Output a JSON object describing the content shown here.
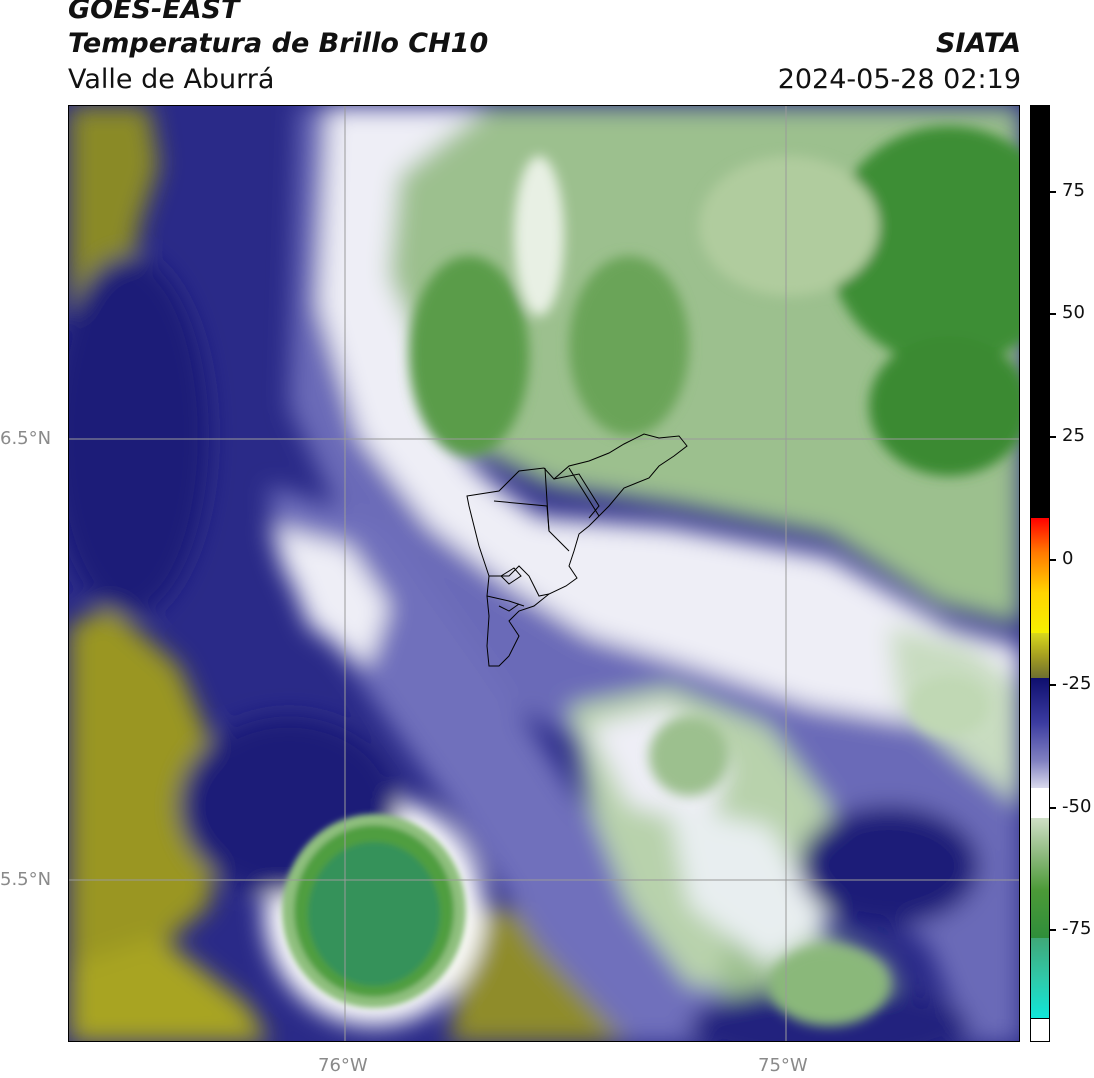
{
  "header": {
    "satellite": "GOES-EAST",
    "product": "Temperatura de Brillo CH10",
    "region": "Valle de Aburrá",
    "organization": "SIATA",
    "timestamp": "2024-05-28 02:19"
  },
  "map": {
    "lat_labels": [
      {
        "text": "6.5°N",
        "value": 6.5
      },
      {
        "text": "5.5°N",
        "value": 5.5
      }
    ],
    "lon_labels": [
      {
        "text": "76°W",
        "value": -76.0
      },
      {
        "text": "75°W",
        "value": -75.0
      }
    ],
    "gridline_color": "#9a9a9a",
    "boundary_color": "#000000"
  },
  "colorbar": {
    "ticks": [
      "75",
      "50",
      "25",
      "0",
      "-25",
      "-50",
      "-75"
    ],
    "segments": [
      {
        "name": "black",
        "color": "#000000"
      },
      {
        "name": "warm",
        "colors": [
          "#ff0000",
          "#ff7a00",
          "#ffd400",
          "#f5f000"
        ]
      },
      {
        "name": "olive",
        "colors": [
          "#d8d81c",
          "#a6a020",
          "#6e6e30"
        ]
      },
      {
        "name": "navy",
        "colors": [
          "#1a1a7a",
          "#3a3aa0",
          "#8080c0",
          "#c8c8e4"
        ]
      },
      {
        "name": "white",
        "color": "#ffffff"
      },
      {
        "name": "green",
        "colors": [
          "#cfe0c6",
          "#8fba80",
          "#4c9a38",
          "#2f8e3a"
        ]
      },
      {
        "name": "teal",
        "colors": [
          "#3fa878",
          "#30c8a8",
          "#10e6d8"
        ]
      },
      {
        "name": "under",
        "color": "#ffffff"
      }
    ]
  }
}
